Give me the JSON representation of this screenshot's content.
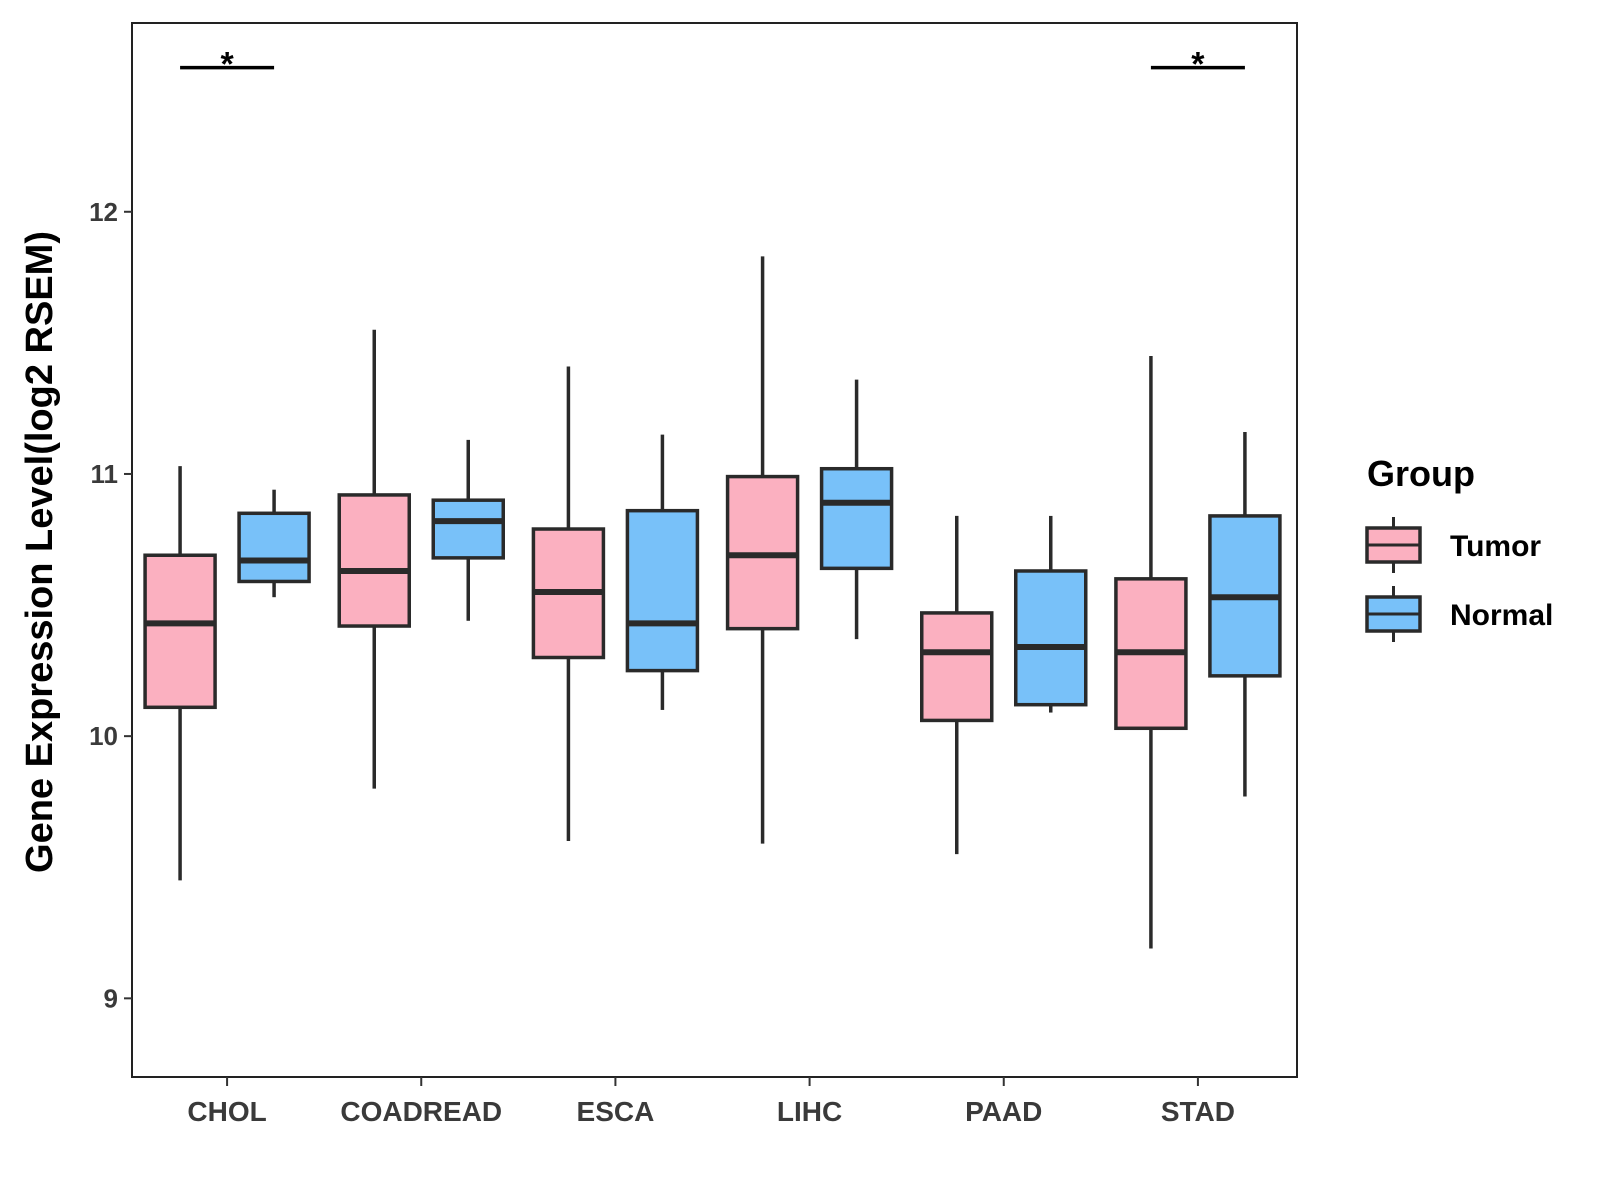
{
  "chart_data": {
    "type": "boxplot",
    "title": "",
    "xlabel": "",
    "ylabel": "Gene Expression Level(log2 RSEM)",
    "ylim": [
      8.7,
      12.72
    ],
    "yticks": [
      9,
      10,
      11,
      12
    ],
    "grid": false,
    "legend": {
      "title": "Group",
      "position": "right"
    },
    "categories": [
      "CHOL",
      "COADREAD",
      "ESCA",
      "LIHC",
      "PAAD",
      "STAD"
    ],
    "series": [
      {
        "name": "Tumor",
        "color": "#fbb0c0",
        "boxes": [
          {
            "category": "CHOL",
            "min": 9.45,
            "q1": 10.11,
            "median": 10.43,
            "q3": 10.69,
            "max": 11.03
          },
          {
            "category": "COADREAD",
            "min": 9.8,
            "q1": 10.42,
            "median": 10.63,
            "q3": 10.92,
            "max": 11.55
          },
          {
            "category": "ESCA",
            "min": 9.6,
            "q1": 10.3,
            "median": 10.55,
            "q3": 10.79,
            "max": 11.41
          },
          {
            "category": "LIHC",
            "min": 9.59,
            "q1": 10.41,
            "median": 10.69,
            "q3": 10.99,
            "max": 11.83
          },
          {
            "category": "PAAD",
            "min": 9.55,
            "q1": 10.06,
            "median": 10.32,
            "q3": 10.47,
            "max": 10.84
          },
          {
            "category": "STAD",
            "min": 9.19,
            "q1": 10.03,
            "median": 10.32,
            "q3": 10.6,
            "max": 11.45
          }
        ]
      },
      {
        "name": "Normal",
        "color": "#78c1f9",
        "boxes": [
          {
            "category": "CHOL",
            "min": 10.53,
            "q1": 10.59,
            "median": 10.67,
            "q3": 10.85,
            "max": 10.94
          },
          {
            "category": "COADREAD",
            "min": 10.44,
            "q1": 10.68,
            "median": 10.82,
            "q3": 10.9,
            "max": 11.13
          },
          {
            "category": "ESCA",
            "min": 10.1,
            "q1": 10.25,
            "median": 10.43,
            "q3": 10.86,
            "max": 11.15
          },
          {
            "category": "LIHC",
            "min": 10.37,
            "q1": 10.64,
            "median": 10.89,
            "q3": 11.02,
            "max": 11.36
          },
          {
            "category": "PAAD",
            "min": 10.09,
            "q1": 10.12,
            "median": 10.34,
            "q3": 10.63,
            "max": 10.84
          },
          {
            "category": "STAD",
            "min": 9.77,
            "q1": 10.23,
            "median": 10.53,
            "q3": 10.84,
            "max": 11.16
          }
        ]
      }
    ],
    "annotations": [
      {
        "category": "CHOL",
        "label": "*",
        "y": 12.55
      },
      {
        "category": "STAD",
        "label": "*",
        "y": 12.55
      }
    ]
  }
}
